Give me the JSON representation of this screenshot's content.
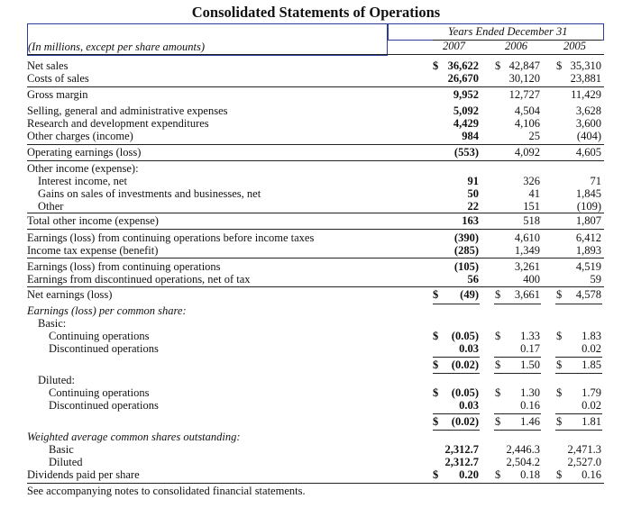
{
  "title": "Consolidated Statements of Operations",
  "header": {
    "units_label": "(In millions, except per share amounts)",
    "period_label": "Years Ended December 31",
    "years": [
      "2007",
      "2006",
      "2005"
    ]
  },
  "rows": [
    {
      "label": "Net sales",
      "indent": 0,
      "sym": "$",
      "v2007": "36,622",
      "sym2006": "$",
      "v2006": "42,847",
      "sym2005": "$",
      "v2005": "35,310"
    },
    {
      "label": "Costs of sales",
      "indent": 0,
      "v2007": "26,670",
      "v2006": "30,120",
      "v2005": "23,881"
    },
    {
      "label": "Gross margin",
      "indent": 0,
      "v2007": "9,952",
      "v2006": "12,727",
      "v2005": "11,429"
    },
    {
      "label": "Selling, general and administrative expenses",
      "indent": 0,
      "v2007": "5,092",
      "v2006": "4,504",
      "v2005": "3,628"
    },
    {
      "label": "Research and development expenditures",
      "indent": 0,
      "v2007": "4,429",
      "v2006": "4,106",
      "v2005": "3,600"
    },
    {
      "label": "Other charges (income)",
      "indent": 0,
      "v2007": "984",
      "v2006": "25",
      "v2005": "(404)"
    },
    {
      "label": "Operating earnings (loss)",
      "indent": 0,
      "v2007": "(553)",
      "v2006": "4,092",
      "v2005": "4,605"
    },
    {
      "label": "Other income (expense):",
      "indent": 0
    },
    {
      "label": "Interest income, net",
      "indent": 1,
      "v2007": "91",
      "v2006": "326",
      "v2005": "71"
    },
    {
      "label": "Gains on sales of investments and businesses, net",
      "indent": 1,
      "v2007": "50",
      "v2006": "41",
      "v2005": "1,845"
    },
    {
      "label": "Other",
      "indent": 1,
      "v2007": "22",
      "v2006": "151",
      "v2005": "(109)"
    },
    {
      "label": "Total other income (expense)",
      "indent": 0,
      "v2007": "163",
      "v2006": "518",
      "v2005": "1,807"
    },
    {
      "label": "Earnings (loss) from continuing operations before income taxes",
      "indent": 0,
      "v2007": "(390)",
      "v2006": "4,610",
      "v2005": "6,412"
    },
    {
      "label": "Income tax expense (benefit)",
      "indent": 0,
      "v2007": "(285)",
      "v2006": "1,349",
      "v2005": "1,893"
    },
    {
      "label": "Earnings (loss) from continuing operations",
      "indent": 0,
      "v2007": "(105)",
      "v2006": "3,261",
      "v2005": "4,519"
    },
    {
      "label": "Earnings from discontinued operations, net of tax",
      "indent": 0,
      "v2007": "56",
      "v2006": "400",
      "v2005": "59"
    },
    {
      "label": "Net earnings (loss)",
      "indent": 0,
      "sym": "$",
      "v2007": "(49)",
      "sym2006": "$",
      "v2006": "3,661",
      "sym2005": "$",
      "v2005": "4,578"
    }
  ],
  "eps": {
    "heading": "Earnings (loss) per common share:",
    "basic_label": "Basic:",
    "diluted_label": "Diluted:",
    "basic": [
      {
        "label": "Continuing operations",
        "sym": "$",
        "v2007": "(0.05)",
        "sym2006": "$",
        "v2006": "1.33",
        "sym2005": "$",
        "v2005": "1.83"
      },
      {
        "label": "Discontinued operations",
        "v2007": "0.03",
        "v2006": "0.17",
        "v2005": "0.02"
      },
      {
        "label": "",
        "sym": "$",
        "v2007": "(0.02)",
        "sym2006": "$",
        "v2006": "1.50",
        "sym2005": "$",
        "v2005": "1.85"
      }
    ],
    "diluted": [
      {
        "label": "Continuing operations",
        "sym": "$",
        "v2007": "(0.05)",
        "sym2006": "$",
        "v2006": "1.30",
        "sym2005": "$",
        "v2005": "1.79"
      },
      {
        "label": "Discontinued operations",
        "v2007": "0.03",
        "v2006": "0.16",
        "v2005": "0.02"
      },
      {
        "label": "",
        "sym": "$",
        "v2007": "(0.02)",
        "sym2006": "$",
        "v2006": "1.46",
        "sym2005": "$",
        "v2005": "1.81"
      }
    ]
  },
  "shares": {
    "heading": "Weighted average common shares outstanding:",
    "basic": {
      "label": "Basic",
      "v2007": "2,312.7",
      "v2006": "2,446.3",
      "v2005": "2,471.3"
    },
    "diluted": {
      "label": "Diluted",
      "v2007": "2,312.7",
      "v2006": "2,504.2",
      "v2005": "2,527.0"
    }
  },
  "dividends": {
    "label": "Dividends paid per share",
    "sym": "$",
    "v2007": "0.20",
    "sym2006": "$",
    "v2006": "0.18",
    "sym2005": "$",
    "v2005": "0.16"
  },
  "footnote": "See accompanying notes to consolidated financial statements.",
  "colors": {
    "header_box": "#2b3ea0",
    "text": "#111111"
  }
}
